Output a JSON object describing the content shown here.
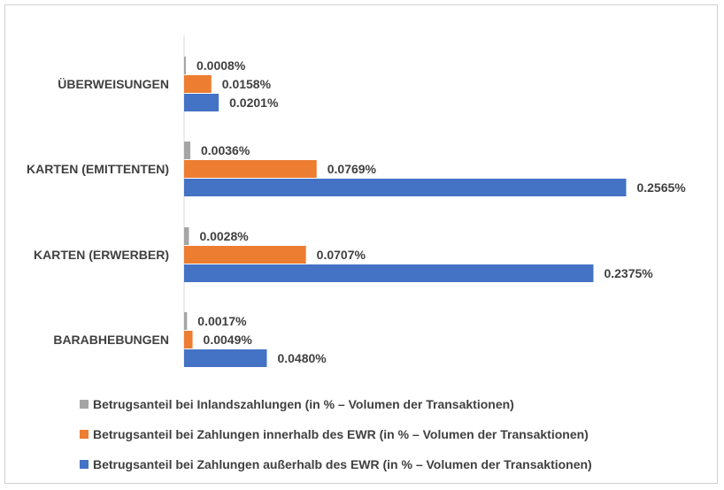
{
  "chart_data": {
    "type": "bar",
    "orientation": "horizontal",
    "categories": [
      "ÜBERWEISUNGEN",
      "KARTEN (EMITTENTEN)",
      "KARTEN (ERWERBER)",
      "BARABHEBUNGEN"
    ],
    "series": [
      {
        "name": "Betrugsanteil bei Inlandszahlungen (in % – Volumen der Transaktionen)",
        "color": "#a5a5a5",
        "values": [
          0.0008,
          0.0036,
          0.0028,
          0.0017
        ],
        "labels": [
          "0.0008%",
          "0.0036%",
          "0.0028%",
          "0.0017%"
        ]
      },
      {
        "name": "Betrugsanteil bei Zahlungen innerhalb des EWR (in % – Volumen der Transaktionen)",
        "color": "#ed7d31",
        "values": [
          0.0158,
          0.0769,
          0.0707,
          0.0049
        ],
        "labels": [
          "0.0158%",
          "0.0769%",
          "0.0707%",
          "0.0049%"
        ]
      },
      {
        "name": "Betrugsanteil bei Zahlungen außerhalb des EWR (in % – Volumen der Transaktionen)",
        "color": "#4472c4",
        "values": [
          0.0201,
          0.2565,
          0.2375,
          0.048
        ],
        "labels": [
          "0.0201%",
          "0.2565%",
          "0.2375%",
          "0.0480%"
        ]
      }
    ],
    "title": "",
    "xlabel": "",
    "ylabel": "",
    "xlim": [
      0,
      0.26
    ],
    "grid": false,
    "legend_position": "bottom"
  }
}
